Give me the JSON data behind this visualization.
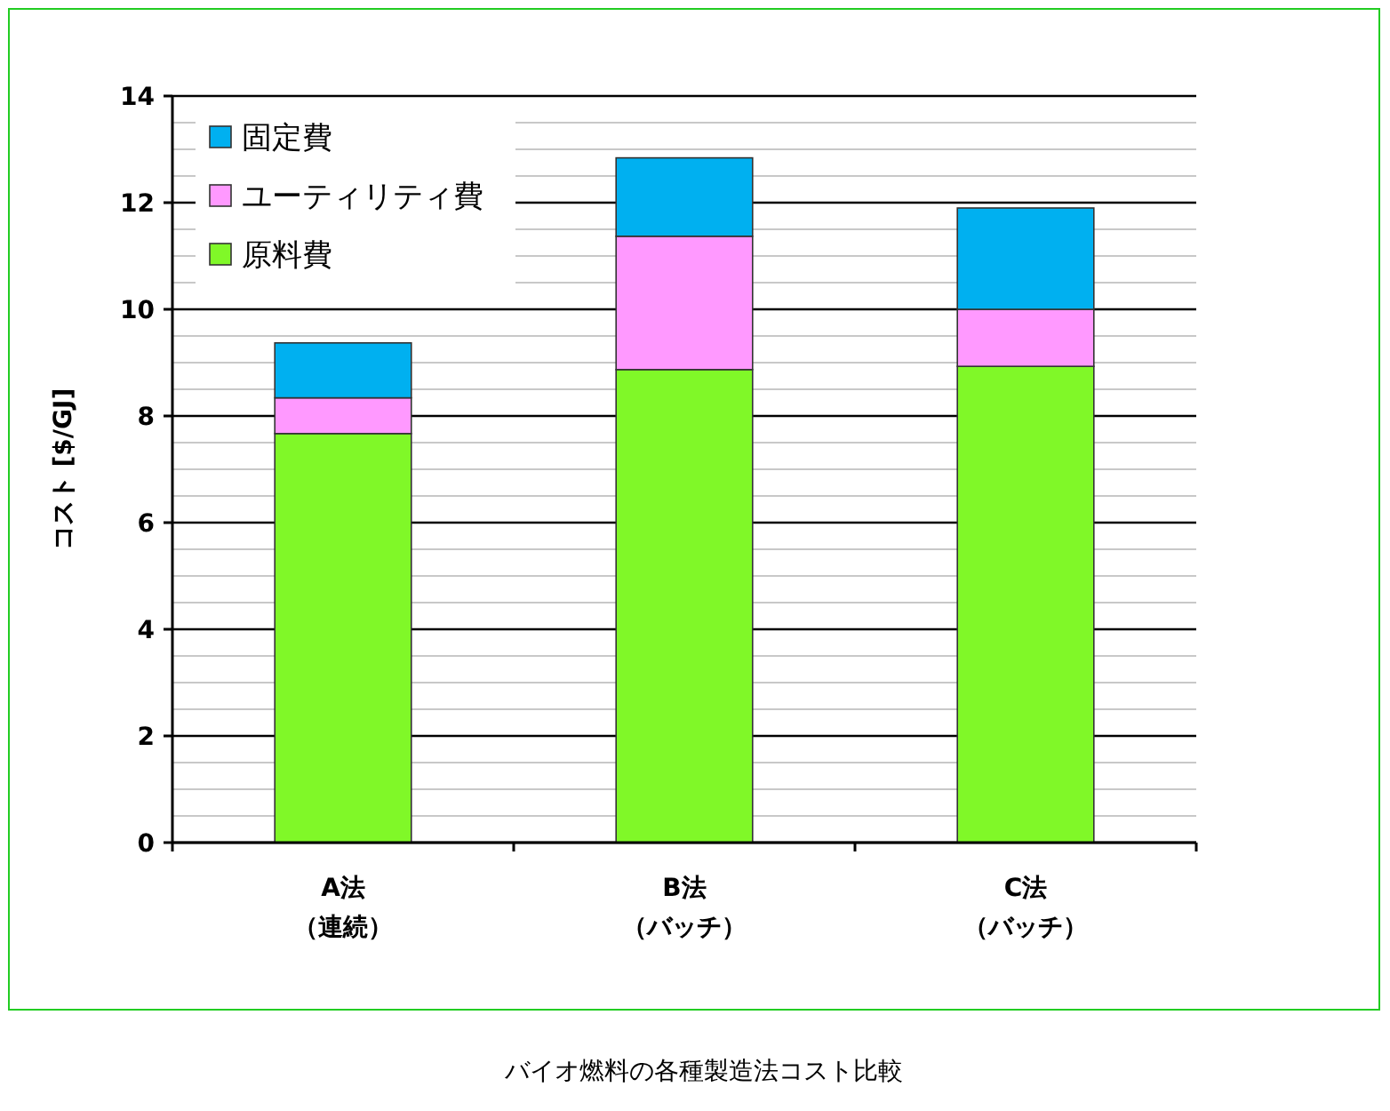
{
  "chart_data": {
    "type": "bar",
    "stacked": true,
    "title": "バイオ燃料の各種製造法コスト比較",
    "ylabel": "コスト [$/GJ]",
    "categories": [
      "A法（連続）",
      "B法（バッチ）",
      "C法（バッチ）"
    ],
    "series": [
      {
        "name": "原料費",
        "color": "#80f828",
        "values": [
          7.67,
          8.87,
          8.93
        ]
      },
      {
        "name": "ユーティリティ費",
        "color": "#ff99ff",
        "values": [
          0.67,
          2.5,
          1.07
        ]
      },
      {
        "name": "固定費",
        "color": "#00b0f0",
        "values": [
          1.03,
          1.47,
          1.9
        ]
      }
    ],
    "ylim": [
      0,
      14
    ],
    "yticks": [
      0,
      2,
      4,
      6,
      8,
      10,
      12,
      14
    ],
    "grid": true,
    "legend": "top left"
  }
}
